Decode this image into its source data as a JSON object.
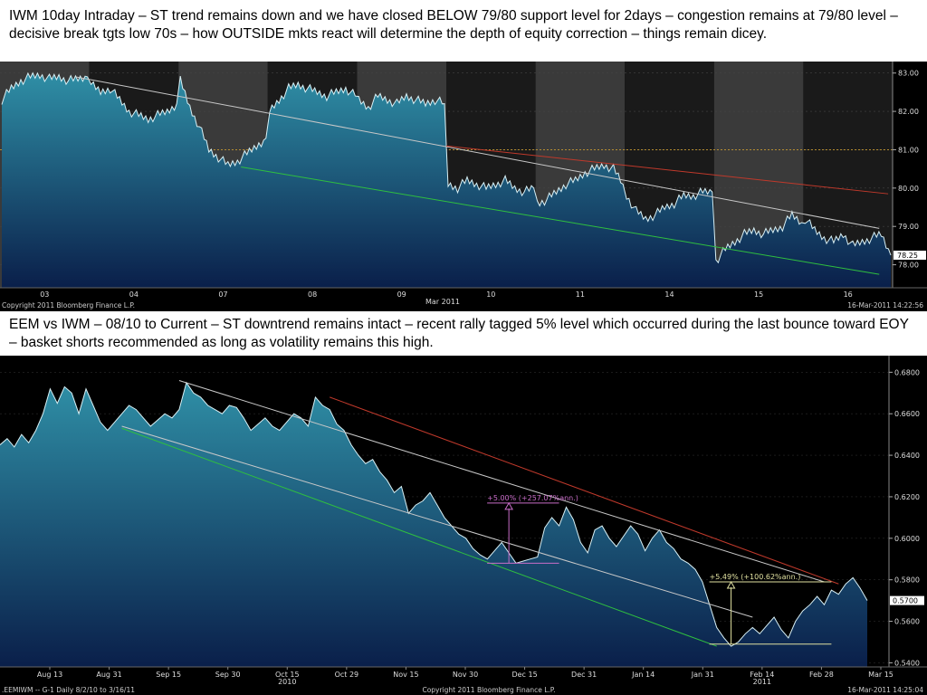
{
  "captions": {
    "top": "IWM 10day Intraday – ST trend remains down and we have closed BELOW 79/80 support level for 2days – congestion remains at 79/80 level – decisive break tgts low 70s – how OUTSIDE mkts react will determine the depth of equity correction – things remain dicey.",
    "bottom": "EEM vs IWM – 08/10 to Current – ST downtrend remains intact – recent rally tagged 5% level which occurred during the last bounce toward EOY – basket shorts recommended as long as volatility remains this high."
  },
  "colors": {
    "fill_top": "#2f8fa6",
    "fill_bottom": "#0a1f4a",
    "line": "#d8f0f5",
    "trend_white": "#c8c8c8",
    "trend_red": "#c0392b",
    "trend_green": "#2fbf3f",
    "annotation_pink": "#c86cc8",
    "annotation_yellow": "#e0e0a0",
    "background": "#000000",
    "band_light": "#3a3a3a",
    "band_dark": "#1a1a1a"
  },
  "chart_data": [
    {
      "type": "area",
      "ylim": [
        77.4,
        83.3
      ],
      "yticks": [
        "83.00",
        "82.00",
        "81.00",
        "80.00",
        "79.00",
        "78.00"
      ],
      "ytick_values": [
        83,
        82,
        81,
        80,
        79,
        78
      ],
      "last_price_label": "78.25",
      "last_price": 78.25,
      "dotted_level": 81.0,
      "xticks": [
        "03",
        "04",
        "07",
        "08",
        "09",
        "10",
        "11",
        "14",
        "15",
        "16"
      ],
      "month_label": "Mar 2011",
      "footer_left": "Copyright 2011 Bloomberg Finance L.P.",
      "footer_right": "16-Mar-2011 14:22:56",
      "sessions": [
        {
          "label": "03",
          "values": [
            82.3,
            82.6,
            82.8,
            82.9,
            82.95,
            82.85,
            82.9,
            82.8,
            82.85,
            82.9
          ]
        },
        {
          "label": "04",
          "values": [
            82.7,
            82.5,
            82.6,
            82.3,
            82.0,
            81.9,
            81.8,
            81.9,
            82.0,
            82.2
          ]
        },
        {
          "label": "07",
          "values": [
            82.8,
            82.1,
            81.6,
            81.0,
            80.8,
            80.6,
            80.7,
            80.9,
            81.1,
            81.3
          ]
        },
        {
          "label": "08",
          "values": [
            82.0,
            82.3,
            82.6,
            82.7,
            82.6,
            82.5,
            82.4,
            82.5,
            82.6,
            82.4
          ]
        },
        {
          "label": "09",
          "values": [
            82.3,
            82.1,
            82.4,
            82.3,
            82.2,
            82.4,
            82.3,
            82.2,
            82.3,
            82.2
          ]
        },
        {
          "label": "10",
          "values": [
            80.1,
            80.0,
            80.2,
            80.1,
            80.0,
            80.1,
            80.2,
            80.0,
            79.9,
            80.0
          ]
        },
        {
          "label": "11",
          "values": [
            79.6,
            79.7,
            79.9,
            80.1,
            80.2,
            80.4,
            80.5,
            80.6,
            80.5,
            80.1
          ]
        },
        {
          "label": "14",
          "values": [
            79.8,
            79.4,
            79.2,
            79.3,
            79.5,
            79.6,
            79.8,
            79.8,
            79.9,
            79.9
          ]
        },
        {
          "label": "15",
          "values": [
            78.1,
            78.4,
            78.6,
            78.8,
            78.9,
            78.8,
            78.9,
            79.0,
            79.3,
            79.1
          ]
        },
        {
          "label": "16",
          "values": [
            79.2,
            78.9,
            78.7,
            78.6,
            78.8,
            78.5,
            78.6,
            78.7,
            78.8,
            78.25
          ]
        }
      ],
      "trendlines": [
        {
          "color": "white",
          "from": [
            0.85,
            82.9
          ],
          "to": [
            9.85,
            78.95
          ]
        },
        {
          "color": "red",
          "from": [
            5.0,
            81.1
          ],
          "to": [
            9.95,
            79.85
          ]
        },
        {
          "color": "green",
          "from": [
            2.7,
            80.55
          ],
          "to": [
            9.85,
            77.75
          ]
        }
      ]
    },
    {
      "type": "area",
      "ylim": [
        0.538,
        0.688
      ],
      "yticks": [
        "0.6800",
        "0.6600",
        "0.6400",
        "0.6200",
        "0.6000",
        "0.5800",
        "0.5600",
        "0.5400"
      ],
      "ytick_values": [
        0.68,
        0.66,
        0.64,
        0.62,
        0.6,
        0.58,
        0.56,
        0.54
      ],
      "last_price_label": "0.5700",
      "last_price": 0.57,
      "xticks": [
        "Aug 13",
        "Aug 31",
        "Sep 15",
        "Sep 30",
        "Oct 15",
        "Oct 29",
        "Nov 15",
        "Nov 30",
        "Dec 15",
        "Dec 31",
        "Jan 14",
        "Jan 31",
        "Feb 14",
        "Feb 28",
        "Mar 15"
      ],
      "year_labels": [
        {
          "label": "2010",
          "at": 4
        },
        {
          "label": "2011",
          "at": 12
        }
      ],
      "footer_left": ".EEMIWM --    G-1   Daily  8/2/10 to 3/16/11",
      "footer_center": "Copyright 2011 Bloomberg Finance L.P.",
      "footer_right": "16-Mar-2011 14:25:04",
      "values": [
        0.645,
        0.648,
        0.644,
        0.65,
        0.646,
        0.652,
        0.66,
        0.672,
        0.665,
        0.673,
        0.67,
        0.66,
        0.672,
        0.664,
        0.656,
        0.652,
        0.656,
        0.66,
        0.664,
        0.662,
        0.658,
        0.654,
        0.657,
        0.66,
        0.658,
        0.662,
        0.675,
        0.67,
        0.668,
        0.664,
        0.662,
        0.66,
        0.664,
        0.663,
        0.658,
        0.652,
        0.655,
        0.658,
        0.654,
        0.652,
        0.656,
        0.66,
        0.658,
        0.654,
        0.668,
        0.664,
        0.662,
        0.655,
        0.652,
        0.645,
        0.64,
        0.636,
        0.638,
        0.632,
        0.628,
        0.622,
        0.625,
        0.612,
        0.616,
        0.618,
        0.622,
        0.616,
        0.61,
        0.606,
        0.602,
        0.6,
        0.595,
        0.592,
        0.59,
        0.594,
        0.598,
        0.593,
        0.588,
        0.589,
        0.59,
        0.591,
        0.605,
        0.61,
        0.606,
        0.615,
        0.609,
        0.598,
        0.593,
        0.604,
        0.606,
        0.6,
        0.596,
        0.601,
        0.606,
        0.602,
        0.594,
        0.6,
        0.604,
        0.598,
        0.595,
        0.59,
        0.588,
        0.585,
        0.579,
        0.568,
        0.557,
        0.552,
        0.548,
        0.55,
        0.554,
        0.557,
        0.554,
        0.558,
        0.562,
        0.556,
        0.552,
        0.56,
        0.565,
        0.568,
        0.572,
        0.568,
        0.575,
        0.573,
        0.578,
        0.581,
        0.576,
        0.57
      ],
      "trendlines": [
        {
          "color": "white",
          "from": [
            25,
            0.676
          ],
          "to": [
            115,
            0.579
          ]
        },
        {
          "color": "white",
          "from": [
            17,
            0.654
          ],
          "to": [
            105,
            0.562
          ]
        },
        {
          "color": "red",
          "from": [
            46,
            0.668
          ],
          "to": [
            117,
            0.578
          ]
        },
        {
          "color": "green",
          "from": [
            17,
            0.653
          ],
          "to": [
            100,
            0.548
          ]
        }
      ],
      "annotations": [
        {
          "text": "+5.00% (+257.07%ann.)",
          "color": "pink",
          "low": 0.588,
          "high": 0.617,
          "from_index": 71,
          "to_index": 78
        },
        {
          "text": "+5.49% (+100.62%ann.)",
          "color": "yellow",
          "low": 0.549,
          "high": 0.579,
          "from_index": 102,
          "to_index": 116
        }
      ]
    }
  ]
}
